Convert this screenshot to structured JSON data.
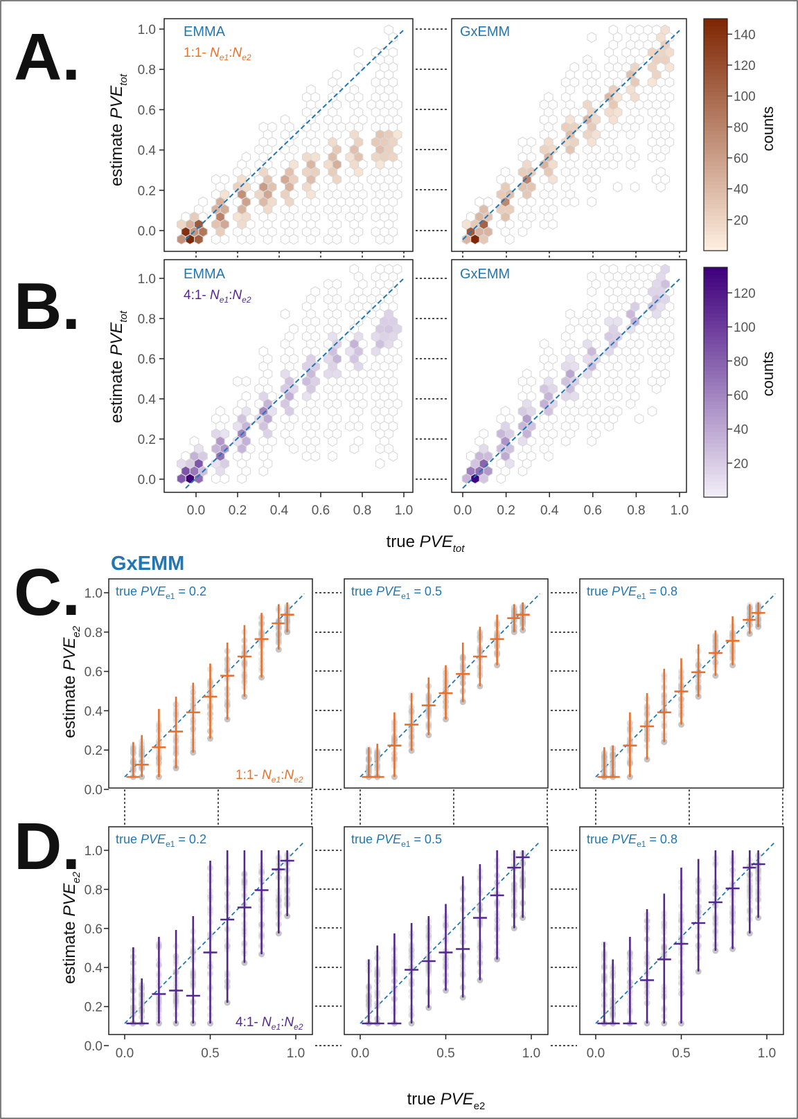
{
  "panels": {
    "A": {
      "letter": "A.",
      "ylabel": "estimate",
      "ylabel_var": "PVE",
      "ylabel_sub": "tot",
      "left_title": "EMMA",
      "right_title": "GxEMM",
      "ratio_prefix": "1:1- ",
      "ratio_n1": "N",
      "ratio_sub1": "e1",
      "ratio_colon": ":",
      "ratio_n2": "N",
      "ratio_sub2": "e2",
      "colorbar_label": "counts",
      "colorbar_ticks": [
        "140",
        "120",
        "100",
        "80",
        "60",
        "40",
        "20"
      ],
      "colorbar_tick_values": [
        140,
        120,
        100,
        80,
        60,
        40,
        20
      ],
      "colorbar_max": 150,
      "yticks": [
        "0.0",
        "0.2",
        "0.4",
        "0.6",
        "0.8",
        "1.0"
      ],
      "color_low": "#fff1e3",
      "color_high": "#7f2704"
    },
    "B": {
      "letter": "B.",
      "ylabel": "estimate",
      "ylabel_var": "PVE",
      "ylabel_sub": "tot",
      "left_title": "EMMA",
      "right_title": "GxEMM",
      "ratio_prefix": "4:1- ",
      "ratio_n1": "N",
      "ratio_sub1": "e1",
      "ratio_colon": ":",
      "ratio_n2": "N",
      "ratio_sub2": "e2",
      "colorbar_label": "counts",
      "colorbar_ticks": [
        "120",
        "100",
        "80",
        "60",
        "40",
        "20"
      ],
      "colorbar_tick_values": [
        120,
        100,
        80,
        60,
        40,
        20
      ],
      "colorbar_max": 135,
      "yticks": [
        "0.0",
        "0.2",
        "0.4",
        "0.6",
        "0.8",
        "1.0"
      ],
      "xticks": [
        "0.0",
        "0.2",
        "0.4",
        "0.6",
        "0.8",
        "1.0"
      ],
      "xlabel": "true",
      "xlabel_var": "PVE",
      "xlabel_sub": "tot",
      "color_low": "#f4f1f8",
      "color_high": "#3f007d"
    },
    "C": {
      "letter": "C.",
      "heading": "GxEMM",
      "ylabel": "estimate",
      "ylabel_var": "PVE",
      "ylabel_sub": "e2",
      "yticks": [
        "0.0",
        "0.2",
        "0.4",
        "0.6",
        "0.8",
        "1.0"
      ],
      "subplot_titles": [
        {
          "prefix": "true ",
          "var": "PVE",
          "sub": "e1",
          "suffix": " = 0.2"
        },
        {
          "prefix": "true ",
          "var": "PVE",
          "sub": "e1",
          "suffix": " = 0.5"
        },
        {
          "prefix": "true ",
          "var": "PVE",
          "sub": "e1",
          "suffix": " = 0.8"
        }
      ],
      "ratio_prefix": "1:1- ",
      "ratio_n1": "N",
      "ratio_sub1": "e1",
      "ratio_colon": ":",
      "ratio_n2": "N",
      "ratio_sub2": "e2",
      "bar_color": "#e8702a"
    },
    "D": {
      "letter": "D.",
      "ylabel": "estimate",
      "ylabel_var": "PVE",
      "ylabel_sub": "e2",
      "yticks": [
        "0.0",
        "0.2",
        "0.4",
        "0.6",
        "0.8",
        "1.0"
      ],
      "xticks": [
        "0.0",
        "0.5",
        "1.0"
      ],
      "xlabel": "true",
      "xlabel_var": "PVE",
      "xlabel_sub": "e2",
      "subplot_titles": [
        {
          "prefix": "true ",
          "var": "PVE",
          "sub": "e1",
          "suffix": " = 0.2"
        },
        {
          "prefix": "true ",
          "var": "PVE",
          "sub": "e1",
          "suffix": " = 0.5"
        },
        {
          "prefix": "true ",
          "var": "PVE",
          "sub": "e1",
          "suffix": " = 0.8"
        }
      ],
      "ratio_prefix": "4:1- ",
      "ratio_n1": "N",
      "ratio_sub1": "e1",
      "ratio_colon": ":",
      "ratio_n2": "N",
      "ratio_sub2": "e2",
      "bar_color": "#54278f"
    }
  },
  "colors": {
    "title_blue": "#1f77b4",
    "diag_line": "#1f77b4",
    "hex_edge": "#d9d9d9",
    "scatter_grey": "#bdbdbd"
  },
  "chart_data": [
    {
      "type": "heatmap",
      "panel": "A-left",
      "x": [
        0.05,
        0.1,
        0.2,
        0.3,
        0.4,
        0.5,
        0.6,
        0.7,
        0.8,
        0.9,
        0.95
      ],
      "mean_estimate": [
        0.02,
        0.05,
        0.12,
        0.18,
        0.24,
        0.28,
        0.32,
        0.38,
        0.42,
        0.44,
        0.46
      ],
      "xlim": [
        -0.05,
        1.05
      ],
      "ylim": [
        -0.05,
        1.05
      ]
    },
    {
      "type": "heatmap",
      "panel": "A-right",
      "x": [
        0.05,
        0.1,
        0.2,
        0.3,
        0.4,
        0.5,
        0.6,
        0.7,
        0.8,
        0.9,
        0.95
      ],
      "mean_estimate": [
        0.02,
        0.08,
        0.18,
        0.28,
        0.38,
        0.48,
        0.57,
        0.67,
        0.76,
        0.85,
        0.9
      ],
      "xlim": [
        -0.05,
        1.05
      ],
      "ylim": [
        -0.05,
        1.05
      ]
    },
    {
      "type": "heatmap",
      "panel": "B-left",
      "x": [
        0.05,
        0.1,
        0.2,
        0.3,
        0.4,
        0.5,
        0.6,
        0.7,
        0.8,
        0.9,
        0.95
      ],
      "mean_estimate": [
        0.02,
        0.06,
        0.14,
        0.22,
        0.32,
        0.42,
        0.5,
        0.58,
        0.62,
        0.68,
        0.74
      ],
      "xlim": [
        -0.05,
        1.05
      ],
      "ylim": [
        -0.05,
        1.05
      ]
    },
    {
      "type": "heatmap",
      "panel": "B-right",
      "x": [
        0.05,
        0.1,
        0.2,
        0.3,
        0.4,
        0.5,
        0.6,
        0.7,
        0.8,
        0.9,
        0.95
      ],
      "mean_estimate": [
        0.02,
        0.08,
        0.18,
        0.28,
        0.38,
        0.48,
        0.57,
        0.68,
        0.78,
        0.87,
        0.92
      ],
      "xlim": [
        -0.05,
        1.05
      ],
      "ylim": [
        -0.05,
        1.05
      ]
    },
    {
      "type": "scatter",
      "panel": "C",
      "subplot_pve_e1": 0.2,
      "x": [
        0.05,
        0.1,
        0.2,
        0.3,
        0.4,
        0.5,
        0.6,
        0.7,
        0.8,
        0.9,
        0.95
      ],
      "median": [
        0.0,
        0.07,
        0.17,
        0.26,
        0.37,
        0.46,
        0.58,
        0.69,
        0.79,
        0.88,
        0.93
      ],
      "lower": [
        0.0,
        0.0,
        0.0,
        0.05,
        0.14,
        0.22,
        0.33,
        0.46,
        0.57,
        0.73,
        0.83
      ],
      "upper": [
        0.2,
        0.24,
        0.39,
        0.46,
        0.54,
        0.65,
        0.77,
        0.87,
        0.94,
        0.99,
        1.0
      ],
      "xlim": [
        -0.05,
        1.05
      ],
      "ylim": [
        -0.03,
        1.05
      ]
    },
    {
      "type": "scatter",
      "panel": "C",
      "subplot_pve_e1": 0.5,
      "x": [
        0.05,
        0.1,
        0.2,
        0.3,
        0.4,
        0.5,
        0.6,
        0.7,
        0.8,
        0.9,
        0.95
      ],
      "median": [
        0.0,
        0.0,
        0.18,
        0.3,
        0.41,
        0.48,
        0.59,
        0.69,
        0.79,
        0.91,
        0.93
      ],
      "lower": [
        0.0,
        0.0,
        0.0,
        0.15,
        0.24,
        0.33,
        0.43,
        0.52,
        0.64,
        0.83,
        0.84
      ],
      "upper": [
        0.17,
        0.19,
        0.37,
        0.48,
        0.57,
        0.64,
        0.77,
        0.86,
        0.93,
        0.99,
        1.0
      ],
      "xlim": [
        -0.05,
        1.05
      ],
      "ylim": [
        -0.03,
        1.05
      ]
    },
    {
      "type": "scatter",
      "panel": "C",
      "subplot_pve_e1": 0.8,
      "x": [
        0.05,
        0.1,
        0.2,
        0.3,
        0.4,
        0.5,
        0.6,
        0.7,
        0.8,
        0.9,
        0.95
      ],
      "median": [
        0.0,
        0.0,
        0.18,
        0.29,
        0.37,
        0.49,
        0.6,
        0.71,
        0.78,
        0.9,
        0.94
      ],
      "lower": [
        0.0,
        0.0,
        0.0,
        0.1,
        0.2,
        0.3,
        0.46,
        0.58,
        0.64,
        0.82,
        0.86
      ],
      "upper": [
        0.17,
        0.18,
        0.37,
        0.48,
        0.62,
        0.68,
        0.76,
        0.84,
        0.92,
        0.99,
        1.0
      ],
      "xlim": [
        -0.05,
        1.05
      ],
      "ylim": [
        -0.03,
        1.05
      ]
    },
    {
      "type": "scatter",
      "panel": "D",
      "subplot_pve_e1": 0.2,
      "x": [
        0.05,
        0.1,
        0.2,
        0.3,
        0.4,
        0.5,
        0.6,
        0.7,
        0.8,
        0.9,
        0.95
      ],
      "median": [
        0.0,
        0.0,
        0.17,
        0.19,
        0.16,
        0.41,
        0.6,
        0.67,
        0.77,
        0.89,
        0.94
      ],
      "lower": [
        0.0,
        0.0,
        0.0,
        0.0,
        0.0,
        0.0,
        0.12,
        0.35,
        0.4,
        0.52,
        0.62
      ],
      "upper": [
        0.44,
        0.26,
        0.5,
        0.54,
        0.62,
        0.94,
        1.0,
        1.0,
        1.0,
        1.0,
        1.0
      ],
      "xlim": [
        -0.05,
        1.05
      ],
      "ylim": [
        -0.03,
        1.05
      ]
    },
    {
      "type": "scatter",
      "panel": "D",
      "subplot_pve_e1": 0.5,
      "x": [
        0.05,
        0.1,
        0.2,
        0.3,
        0.4,
        0.5,
        0.6,
        0.7,
        0.8,
        0.9,
        0.95
      ],
      "median": [
        0.0,
        0.0,
        0.0,
        0.31,
        0.36,
        0.41,
        0.43,
        0.61,
        0.74,
        0.9,
        0.96
      ],
      "lower": [
        0.0,
        0.0,
        0.0,
        0.0,
        0.09,
        0.19,
        0.15,
        0.25,
        0.37,
        0.55,
        0.61
      ],
      "upper": [
        0.37,
        0.45,
        0.52,
        0.58,
        0.62,
        0.69,
        0.85,
        0.92,
        1.0,
        1.0,
        1.0
      ],
      "xlim": [
        -0.05,
        1.05
      ],
      "ylim": [
        -0.03,
        1.05
      ]
    },
    {
      "type": "scatter",
      "panel": "D",
      "subplot_pve_e1": 0.8,
      "x": [
        0.05,
        0.1,
        0.2,
        0.3,
        0.4,
        0.5,
        0.6,
        0.7,
        0.8,
        0.9,
        0.95
      ],
      "median": [
        0.0,
        0.0,
        0.0,
        0.25,
        0.37,
        0.46,
        0.58,
        0.7,
        0.78,
        0.9,
        0.92
      ],
      "lower": [
        0.0,
        0.0,
        0.0,
        0.0,
        0.0,
        0.0,
        0.3,
        0.42,
        0.43,
        0.52,
        0.61
      ],
      "upper": [
        0.47,
        0.37,
        0.5,
        0.66,
        0.75,
        0.9,
        0.95,
        1.0,
        1.0,
        1.0,
        1.0
      ],
      "xlim": [
        -0.05,
        1.05
      ],
      "ylim": [
        -0.03,
        1.05
      ]
    }
  ]
}
